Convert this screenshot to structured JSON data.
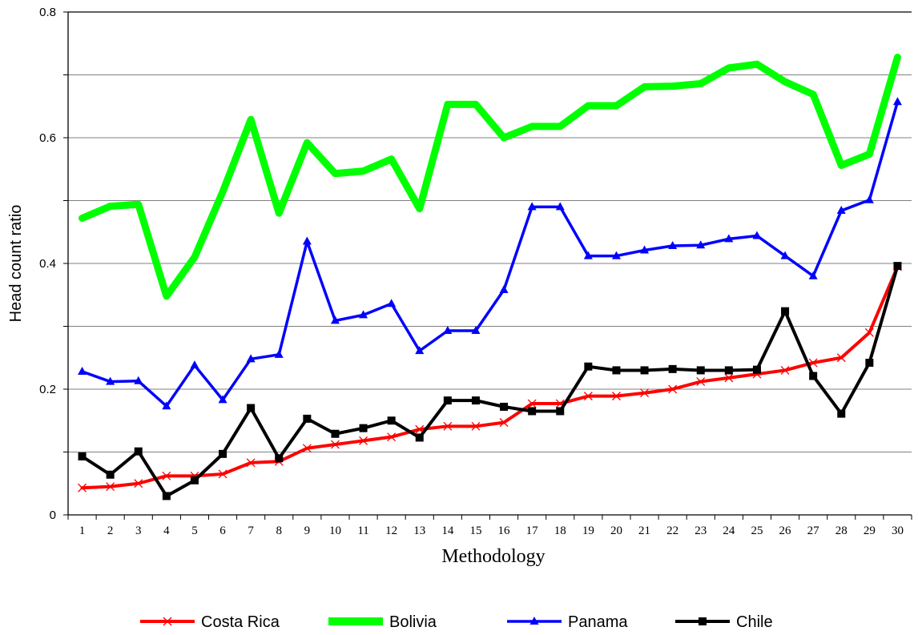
{
  "chart_data": {
    "type": "line",
    "xlabel": "Methodology",
    "ylabel": "Head count ratio",
    "ylim": [
      0,
      0.8
    ],
    "yticks": [
      0,
      0.2,
      0.4,
      0.6,
      0.8
    ],
    "ytick_labels": [
      "0",
      "0.2",
      "0.4",
      "0.6",
      "0.8"
    ],
    "x": [
      1,
      2,
      3,
      4,
      5,
      6,
      7,
      8,
      9,
      10,
      11,
      12,
      13,
      14,
      15,
      16,
      17,
      18,
      19,
      20,
      21,
      22,
      23,
      24,
      25,
      26,
      27,
      28,
      29,
      30
    ],
    "grid": "horizontal",
    "legend_position": "bottom",
    "series": [
      {
        "name": "Costa Rica",
        "color": "#ff0000",
        "marker": "x",
        "values": [
          0.043,
          0.045,
          0.05,
          0.062,
          0.062,
          0.065,
          0.083,
          0.085,
          0.106,
          0.112,
          0.118,
          0.124,
          0.136,
          0.141,
          0.141,
          0.147,
          0.177,
          0.177,
          0.189,
          0.189,
          0.194,
          0.2,
          0.212,
          0.218,
          0.224,
          0.23,
          0.242,
          0.25,
          0.29,
          0.395
        ]
      },
      {
        "name": "Bolivia",
        "color": "#00ff00",
        "marker": "none",
        "values": [
          0.472,
          0.491,
          0.494,
          0.348,
          0.41,
          0.514,
          0.629,
          0.48,
          0.592,
          0.543,
          0.547,
          0.566,
          0.487,
          0.653,
          0.653,
          0.6,
          0.618,
          0.618,
          0.651,
          0.651,
          0.681,
          0.682,
          0.686,
          0.711,
          0.717,
          0.689,
          0.669,
          0.556,
          0.574,
          0.728
        ]
      },
      {
        "name": "Panama",
        "color": "#0000ff",
        "marker": "triangle",
        "values": [
          0.228,
          0.212,
          0.213,
          0.173,
          0.238,
          0.183,
          0.248,
          0.255,
          0.435,
          0.309,
          0.318,
          0.336,
          0.261,
          0.293,
          0.293,
          0.358,
          0.49,
          0.49,
          0.412,
          0.412,
          0.421,
          0.428,
          0.429,
          0.439,
          0.444,
          0.412,
          0.38,
          0.484,
          0.501,
          0.657
        ]
      },
      {
        "name": "Chile",
        "color": "#000000",
        "marker": "square",
        "values": [
          0.093,
          0.064,
          0.101,
          0.03,
          0.055,
          0.097,
          0.17,
          0.09,
          0.153,
          0.129,
          0.138,
          0.15,
          0.123,
          0.182,
          0.182,
          0.172,
          0.165,
          0.165,
          0.236,
          0.23,
          0.23,
          0.232,
          0.23,
          0.23,
          0.231,
          0.324,
          0.221,
          0.161,
          0.242,
          0.396
        ]
      }
    ]
  }
}
